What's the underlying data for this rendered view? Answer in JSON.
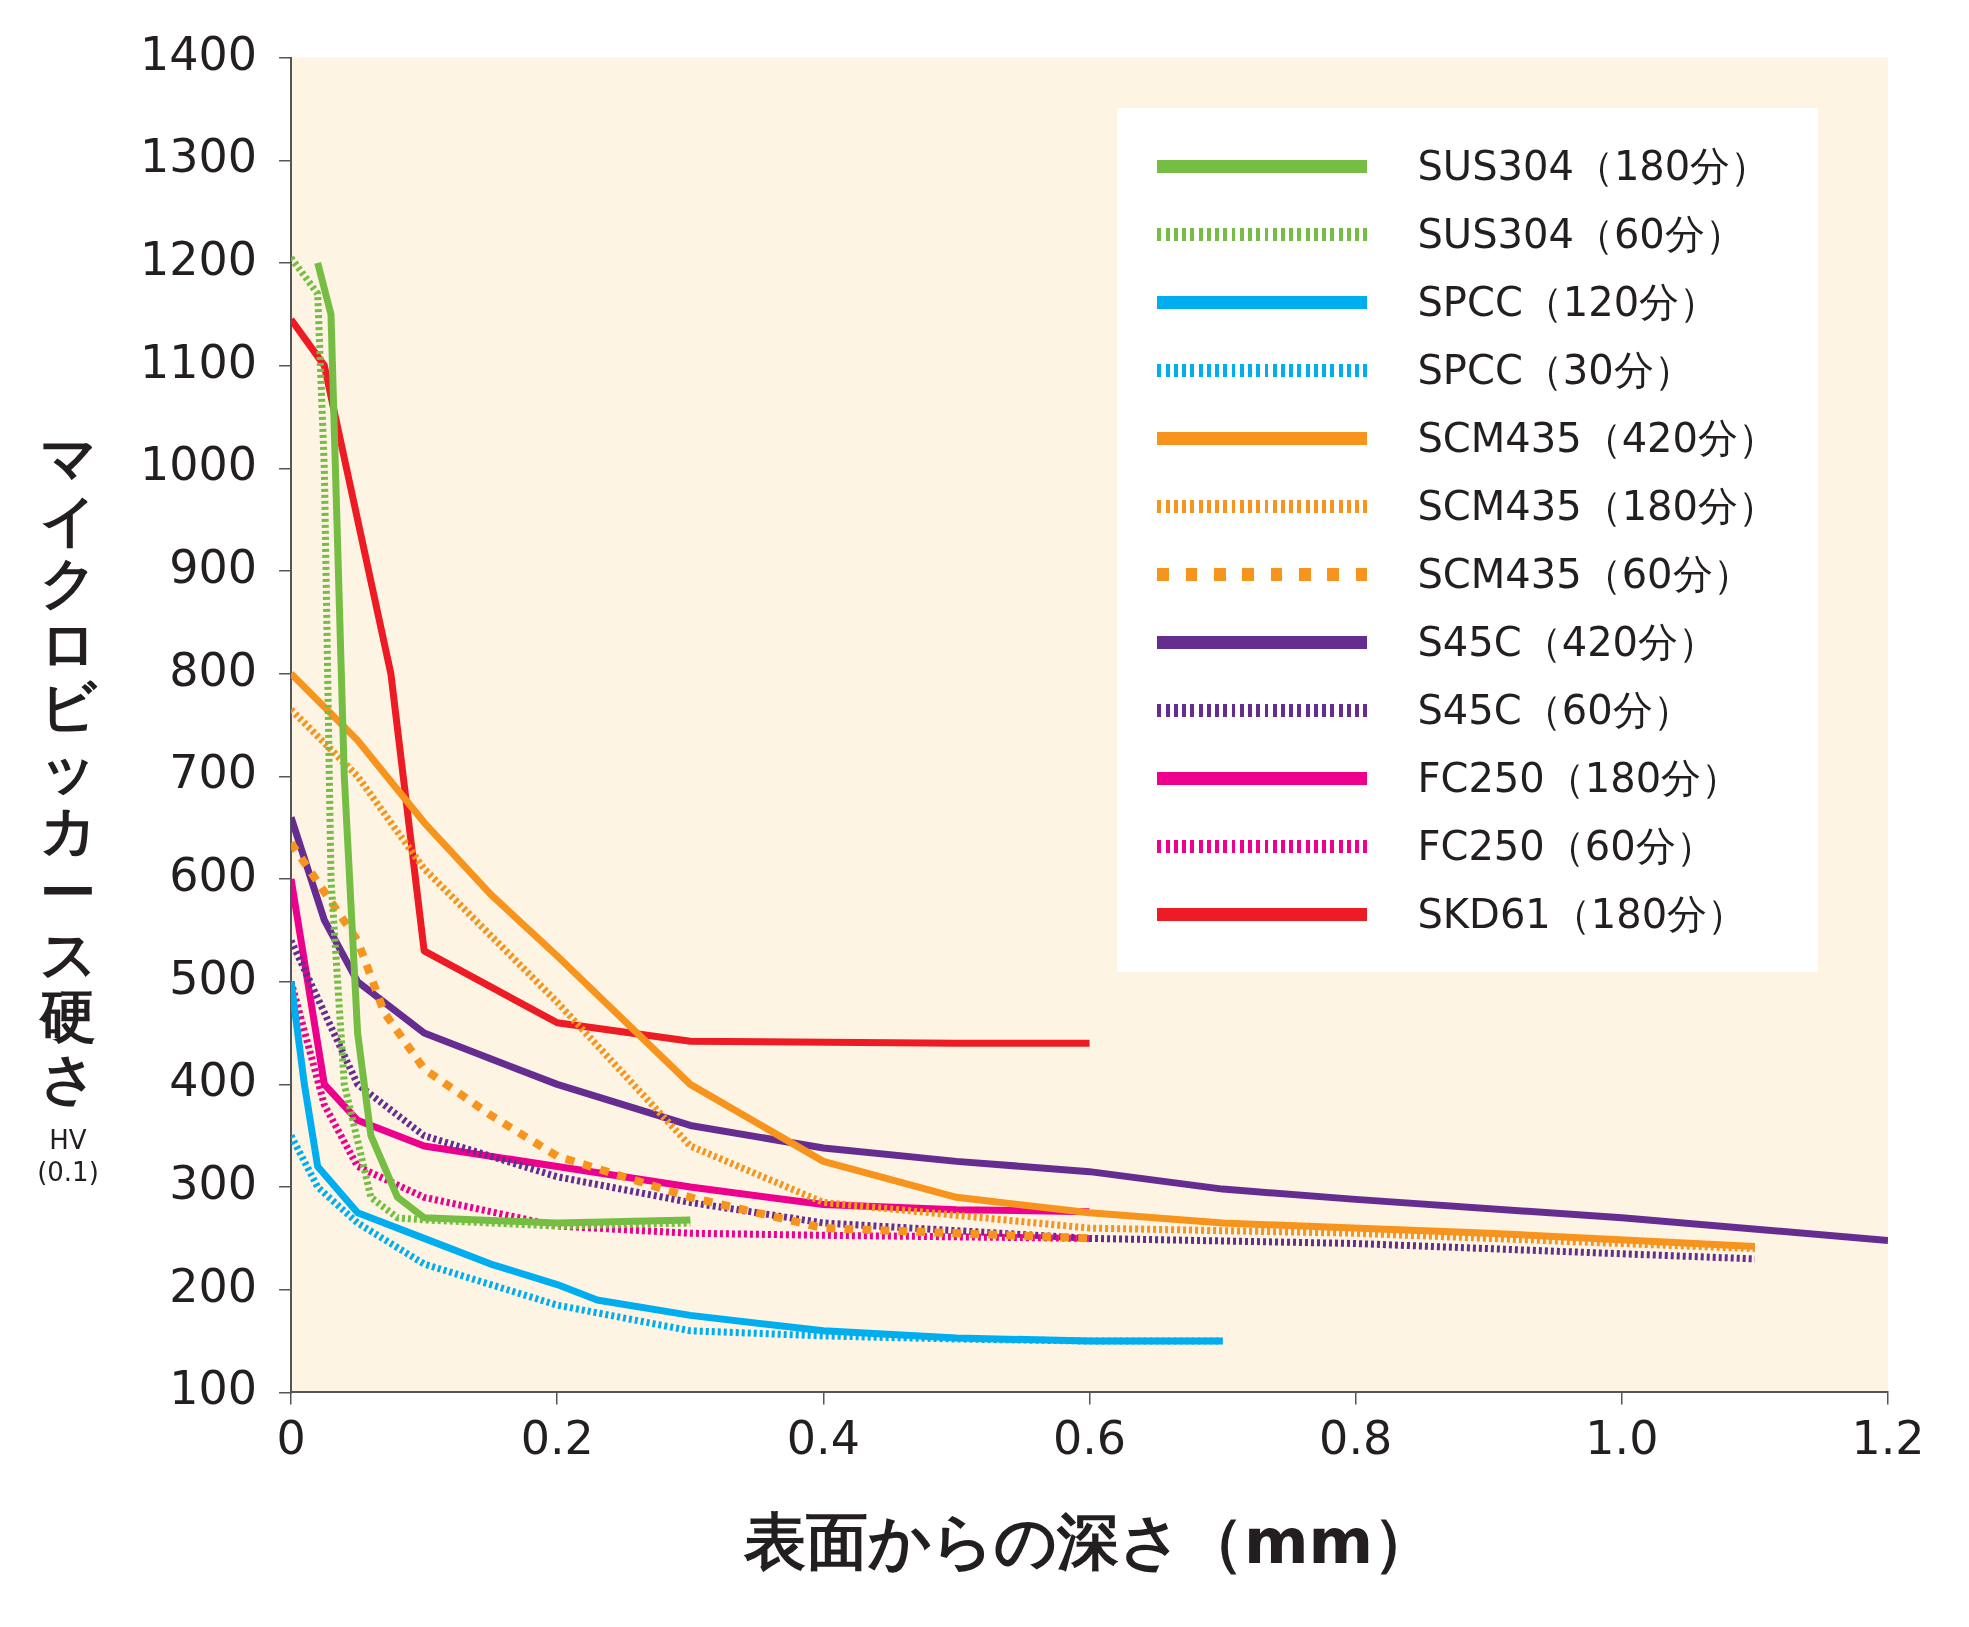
{
  "chart_data": {
    "type": "line",
    "xlabel": "表面からの深さ（mm）",
    "ylabel": "マイクロビッカース硬さ",
    "annotations": [
      "HV\n(0.1)"
    ],
    "xlim": [
      0,
      1.2
    ],
    "xticks": [
      0,
      0.2,
      0.4,
      0.6,
      0.8,
      {
        "value": 1,
        "label": "1.0"
      },
      1.2
    ],
    "ylim": [
      100,
      1400
    ],
    "yticks": [
      100,
      200,
      300,
      400,
      500,
      600,
      700,
      800,
      900,
      1000,
      1100,
      1200,
      1300,
      1400
    ],
    "grid": false,
    "legend": "top right",
    "marker": "none",
    "series": [
      {
        "name": "SUS304（180分）",
        "color": "#76bd43",
        "line_style": "solid",
        "x": [
          0.02,
          0.03,
          0.04,
          0.05,
          0.06,
          0.08,
          0.1,
          0.2,
          0.3
        ],
        "values": [
          1200,
          1150,
          700,
          450,
          350,
          290,
          270,
          265,
          268
        ]
      },
      {
        "name": "SUS304（60分）",
        "color": "#76bd43",
        "line_style": "dashed",
        "x": [
          0,
          0.02,
          0.025,
          0.03,
          0.04,
          0.06,
          0.08,
          0.1,
          0.2,
          0.3
        ],
        "values": [
          1205,
          1170,
          1000,
          600,
          400,
          290,
          270,
          268,
          262,
          265
        ]
      },
      {
        "name": "SPCC（120分）",
        "color": "#00aeef",
        "line_style": "solid",
        "x": [
          0,
          0.01,
          0.02,
          0.05,
          0.1,
          0.15,
          0.2,
          0.23,
          0.3,
          0.4,
          0.5,
          0.6,
          0.7
        ],
        "values": [
          500,
          400,
          320,
          275,
          250,
          225,
          205,
          190,
          175,
          160,
          153,
          150,
          150
        ]
      },
      {
        "name": "SPCC（30分）",
        "color": "#00aeef",
        "line_style": "dashed",
        "x": [
          0,
          0.02,
          0.05,
          0.1,
          0.15,
          0.2,
          0.3,
          0.4,
          0.5,
          0.6,
          0.7
        ],
        "values": [
          350,
          300,
          265,
          225,
          205,
          185,
          160,
          155,
          152,
          150,
          150
        ]
      },
      {
        "name": "SCM435（420分）",
        "color": "#f7941d",
        "line_style": "solid",
        "x": [
          0,
          0.05,
          0.1,
          0.15,
          0.2,
          0.3,
          0.4,
          0.5,
          0.6,
          0.7,
          0.9,
          1.1
        ],
        "values": [
          800,
          735,
          655,
          585,
          525,
          400,
          325,
          290,
          275,
          265,
          255,
          242
        ]
      },
      {
        "name": "SCM435（180分）",
        "color": "#f7941d",
        "line_style": "dashed",
        "x": [
          0,
          0.05,
          0.1,
          0.2,
          0.3,
          0.4,
          0.6,
          0.8,
          1.1
        ],
        "values": [
          765,
          700,
          610,
          480,
          340,
          285,
          260,
          255,
          240
        ]
      },
      {
        "name": "SCM435（60分）",
        "color": "#f7941d",
        "line_style": "dotted",
        "x": [
          0,
          0.05,
          0.07,
          0.1,
          0.15,
          0.2,
          0.3,
          0.4,
          0.6
        ],
        "values": [
          635,
          540,
          470,
          415,
          370,
          330,
          290,
          260,
          250
        ]
      },
      {
        "name": "S45C（420分）",
        "color": "#662d91",
        "line_style": "solid",
        "x": [
          0,
          0.025,
          0.05,
          0.1,
          0.2,
          0.3,
          0.4,
          0.5,
          0.6,
          0.7,
          0.8,
          1.0,
          1.2
        ],
        "values": [
          660,
          560,
          500,
          450,
          400,
          360,
          338,
          325,
          315,
          298,
          288,
          270,
          248
        ]
      },
      {
        "name": "S45C（60分）",
        "color": "#662d91",
        "line_style": "dashed",
        "x": [
          0,
          0.05,
          0.1,
          0.2,
          0.3,
          0.4,
          0.6,
          0.8,
          1.1
        ],
        "values": [
          540,
          400,
          350,
          310,
          285,
          265,
          250,
          245,
          230
        ]
      },
      {
        "name": "FC250（180分）",
        "color": "#ec008c",
        "line_style": "solid",
        "x": [
          0,
          0.025,
          0.05,
          0.1,
          0.2,
          0.3,
          0.4,
          0.5,
          0.6
        ],
        "values": [
          600,
          400,
          365,
          340,
          320,
          300,
          283,
          278,
          276
        ]
      },
      {
        "name": "FC250（60分）",
        "color": "#ec008c",
        "line_style": "dashed",
        "x": [
          0,
          0.025,
          0.05,
          0.1,
          0.2,
          0.3,
          0.4,
          0.6
        ],
        "values": [
          500,
          380,
          320,
          290,
          262,
          255,
          253,
          250
        ]
      },
      {
        "name": "SKD61（180分）",
        "color": "#ed1c24",
        "line_style": "solid",
        "x": [
          0,
          0.025,
          0.05,
          0.075,
          0.1,
          0.2,
          0.3,
          0.5,
          0.6
        ],
        "values": [
          1145,
          1100,
          950,
          800,
          530,
          460,
          442,
          440,
          440
        ]
      }
    ]
  }
}
